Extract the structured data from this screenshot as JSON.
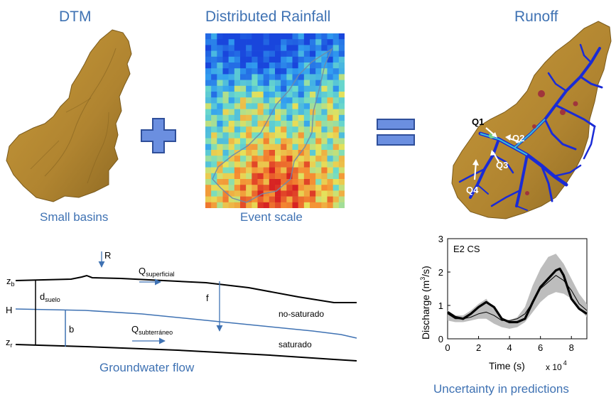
{
  "titles": {
    "dtm": "DTM",
    "rainfall": "Distributed Rainfall",
    "runoff": "Runoff"
  },
  "captions": {
    "dtm": "Small basins",
    "rainfall": "Event scale",
    "groundwater": "Groundwater flow",
    "uncertainty": "Uncertainty in predictions"
  },
  "colors": {
    "accent": "#3f72b3",
    "terrain": "#b38a2e",
    "operator": "#6b8fe0",
    "channel": "#1a2bd6"
  },
  "runoff_map": {
    "labels": [
      "Q1",
      "Q2",
      "Q3",
      "Q4"
    ]
  },
  "groundwater_schematic": {
    "labels": {
      "R": "R",
      "zb": "z",
      "zb_sub": "b",
      "H": "H",
      "zr": "z",
      "zr_sub": "r",
      "dsuelo": "d",
      "dsuelo_sub": "suelo",
      "b": "b",
      "f": "f",
      "qsup": "Q",
      "qsup_sub": "superficial",
      "qsub": "Q",
      "qsub_sub": "subterráneo",
      "no_saturado": "no-saturado",
      "saturado": "saturado"
    }
  },
  "chart_data": {
    "type": "line",
    "title": "E2 CS",
    "xlabel": "Time (s)",
    "x_multiplier": "x 10",
    "x_multiplier_exp": "4",
    "ylabel": "Discharge (m",
    "ylabel_sup": "3",
    "ylabel_tail": "/s)",
    "xlim": [
      0,
      9
    ],
    "ylim": [
      0,
      3
    ],
    "xticks": [
      0,
      2,
      4,
      6,
      8
    ],
    "yticks": [
      0,
      1,
      2,
      3
    ],
    "band": {
      "x": [
        0,
        0.5,
        1,
        1.5,
        2,
        2.5,
        3,
        3.5,
        4,
        4.5,
        5,
        5.5,
        6,
        6.5,
        7,
        7.5,
        8,
        8.5,
        9
      ],
      "lower": [
        0.55,
        0.5,
        0.5,
        0.55,
        0.6,
        0.6,
        0.45,
        0.35,
        0.3,
        0.35,
        0.5,
        0.8,
        1.1,
        1.3,
        1.4,
        1.35,
        1.2,
        0.9,
        0.65
      ],
      "upper": [
        0.85,
        0.7,
        0.7,
        0.85,
        1.05,
        1.2,
        0.9,
        0.6,
        0.55,
        0.65,
        0.95,
        1.6,
        2.1,
        2.45,
        2.55,
        2.25,
        1.8,
        1.35,
        1.05
      ]
    },
    "series": [
      {
        "x": [
          0,
          0.5,
          1,
          1.5,
          2,
          2.5,
          3,
          3.5,
          4,
          4.5,
          5,
          5.5,
          6,
          6.5,
          7,
          7.25,
          7.5,
          8,
          8.5,
          9
        ],
        "values": [
          0.8,
          0.65,
          0.6,
          0.75,
          0.95,
          1.1,
          0.95,
          0.6,
          0.5,
          0.5,
          0.6,
          1.1,
          1.55,
          1.8,
          2.05,
          2.1,
          1.9,
          1.2,
          0.9,
          0.75
        ],
        "style": "thick"
      },
      {
        "x": [
          0,
          0.5,
          1,
          1.5,
          2,
          2.5,
          3,
          3.5,
          4,
          4.5,
          5,
          5.5,
          6,
          6.5,
          7,
          7.5,
          8,
          8.5,
          9
        ],
        "values": [
          0.75,
          0.6,
          0.6,
          0.65,
          0.75,
          0.8,
          0.7,
          0.55,
          0.55,
          0.6,
          0.75,
          1.1,
          1.5,
          1.7,
          1.9,
          1.75,
          1.45,
          1.05,
          0.85
        ],
        "style": "thin"
      }
    ]
  }
}
